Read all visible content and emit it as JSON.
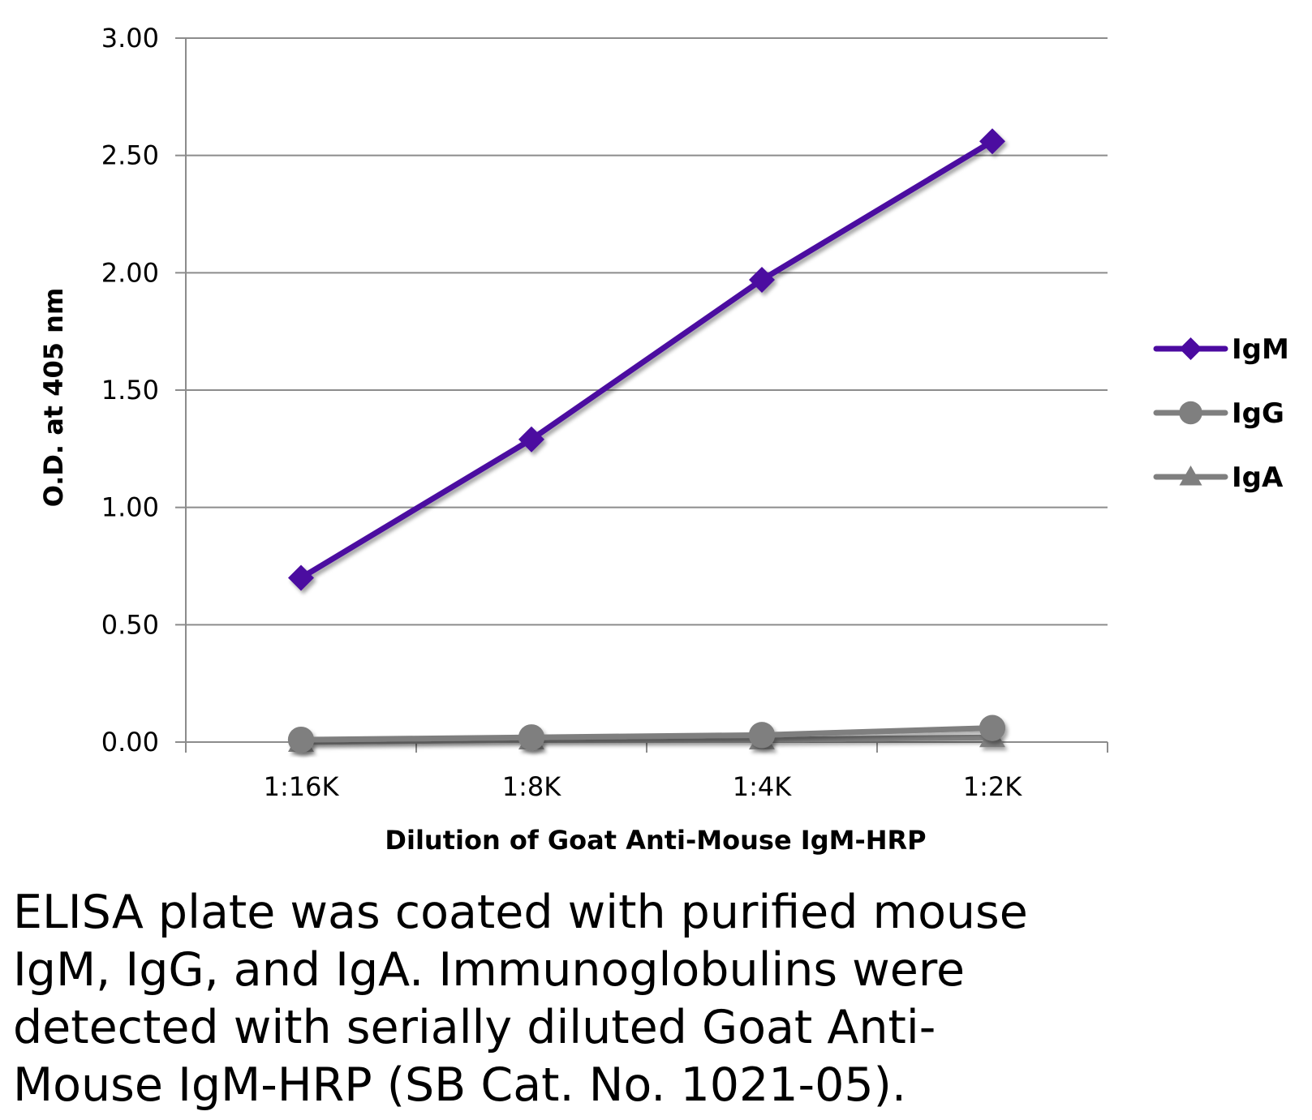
{
  "chart_data": {
    "type": "line",
    "xlabel": "Dilution of Goat Anti-Mouse IgM-HRP",
    "ylabel": "O.D. at 405 nm",
    "categories": [
      "1:16K",
      "1:8K",
      "1:4K",
      "1:2K"
    ],
    "ylim": [
      0,
      3
    ],
    "yticks": [
      "0.00",
      "0.50",
      "1.00",
      "1.50",
      "2.00",
      "2.50",
      "3.00"
    ],
    "ytick_values": [
      0,
      0.5,
      1,
      1.5,
      2,
      2.5,
      3
    ],
    "grid": true,
    "legend_position": "right",
    "series": [
      {
        "name": "IgM",
        "values": [
          0.7,
          1.29,
          1.97,
          2.56
        ],
        "color": "#4b0aa0",
        "marker": "diamond"
      },
      {
        "name": "IgG",
        "values": [
          0.01,
          0.02,
          0.03,
          0.06
        ],
        "color": "#7f7f7f",
        "marker": "circle"
      },
      {
        "name": "IgA",
        "values": [
          0.0,
          0.01,
          0.01,
          0.02
        ],
        "color": "#7f7f7f",
        "marker": "triangle"
      }
    ]
  },
  "caption": "ELISA plate was coated with purified mouse\nIgM, IgG, and IgA.  Immunoglobulins were\ndetected with serially diluted Goat Anti-\nMouse IgM-HRP (SB Cat. No. 1021-05)."
}
